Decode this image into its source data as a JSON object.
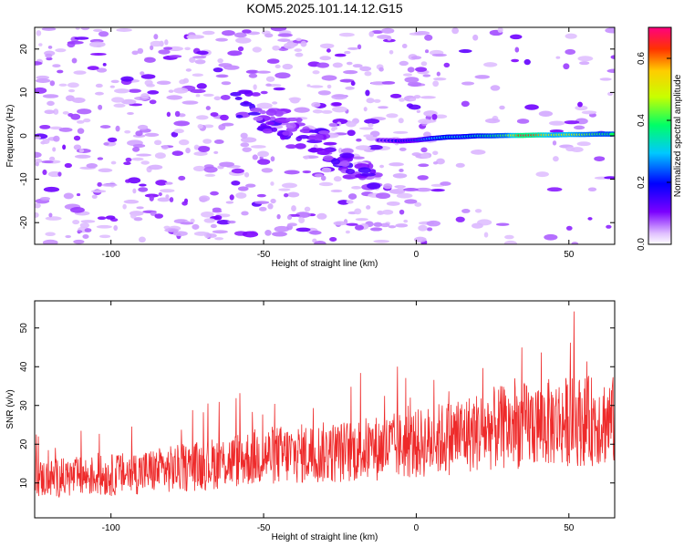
{
  "title": "KOM5.2025.101.14.12.G15",
  "chart_data": [
    {
      "type": "heatmap",
      "xlabel": "Height of straight line (km)",
      "ylabel": "Frequency (Hz)",
      "xlim": [
        -125,
        65
      ],
      "ylim": [
        -25,
        25
      ],
      "xticks": [
        -100,
        -50,
        0,
        50
      ],
      "yticks": [
        -20,
        -10,
        0,
        10,
        20
      ],
      "xtick_labels": [
        "-100",
        "-50",
        "0",
        "50"
      ],
      "ytick_labels": [
        "-20",
        "-10",
        "0",
        "10",
        "20"
      ],
      "colorbar": {
        "label": "Normalized spectral amplitude",
        "range": [
          0.0,
          0.7
        ],
        "ticks": [
          0.0,
          0.2,
          0.4,
          0.6
        ],
        "tick_labels": [
          "0.0",
          "0.2",
          "0.4",
          "0.6"
        ]
      },
      "ridge": [
        {
          "x": -12,
          "y": -1.0,
          "amp": 0.12
        },
        {
          "x": -5,
          "y": -1.2,
          "amp": 0.18
        },
        {
          "x": 0,
          "y": -1.0,
          "amp": 0.2
        },
        {
          "x": 5,
          "y": -0.6,
          "amp": 0.28
        },
        {
          "x": 10,
          "y": -0.3,
          "amp": 0.32
        },
        {
          "x": 15,
          "y": -0.2,
          "amp": 0.3
        },
        {
          "x": 20,
          "y": 0.0,
          "amp": 0.34
        },
        {
          "x": 25,
          "y": 0.0,
          "amp": 0.38
        },
        {
          "x": 30,
          "y": 0.1,
          "amp": 0.42
        },
        {
          "x": 35,
          "y": 0.1,
          "amp": 0.66
        },
        {
          "x": 40,
          "y": 0.2,
          "amp": 0.6
        },
        {
          "x": 45,
          "y": 0.2,
          "amp": 0.48
        },
        {
          "x": 50,
          "y": 0.3,
          "amp": 0.5
        },
        {
          "x": 55,
          "y": 0.3,
          "amp": 0.44
        },
        {
          "x": 60,
          "y": 0.4,
          "amp": 0.4
        },
        {
          "x": 65,
          "y": 0.4,
          "amp": 0.38
        }
      ]
    },
    {
      "type": "line",
      "xlabel": "Height of straight line (km)",
      "ylabel": "SNR (v/v)",
      "xlim": [
        -125,
        65
      ],
      "ylim": [
        1,
        57
      ],
      "xticks": [
        -100,
        -50,
        0,
        50
      ],
      "yticks": [
        10,
        20,
        30,
        40,
        50
      ],
      "xtick_labels": [
        "-100",
        "-50",
        "0",
        "50"
      ],
      "ytick_labels": [
        "10",
        "20",
        "30",
        "40",
        "50"
      ],
      "color": "#ee2a2a",
      "trend": [
        {
          "x": -125,
          "y": 11
        },
        {
          "x": -100,
          "y": 12
        },
        {
          "x": -75,
          "y": 14
        },
        {
          "x": -50,
          "y": 17
        },
        {
          "x": -25,
          "y": 18
        },
        {
          "x": 0,
          "y": 20
        },
        {
          "x": 25,
          "y": 24
        },
        {
          "x": 50,
          "y": 26
        },
        {
          "x": 65,
          "y": 26
        }
      ]
    }
  ]
}
